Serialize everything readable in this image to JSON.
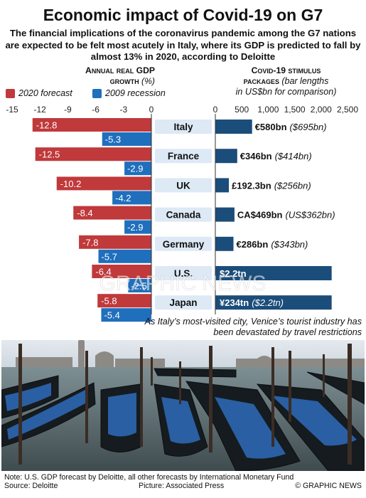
{
  "title": "Economic impact of Covid-19 on G7",
  "subtitle": "The financial implications of the coronavirus pandemic among the G7 nations are expected to be felt most acutely in Italy, where its GDP is predicted to fall by almost 13% in 2020, according to Deloitte",
  "left_header": {
    "line1": "Annual real GDP",
    "line2": "growth",
    "unit": "(%)"
  },
  "right_header": {
    "line1": "Covid-19 stimulus",
    "line2": "packages",
    "note1": "(bar lengths",
    "note2": "in US$bn for comparison)"
  },
  "legend": [
    {
      "label": "2020 forecast",
      "color": "#c0393b"
    },
    {
      "label": "2009 recession",
      "color": "#1f6fbd"
    }
  ],
  "caption": "As Italy’s most-visited city, Venice’s tourist industry has been devastated by travel restrictions",
  "footer": {
    "note": "Note: U.S. GDP forecast by Deloitte, all other forecasts by International Monetary Fund",
    "source": "Source: Deloitte",
    "picture": "Picture: Associated Press",
    "copyright": "© GRAPHIC NEWS"
  },
  "watermark": "GRAPHIC NEWS",
  "chart_data": [
    {
      "type": "bar",
      "title": "Annual real GDP growth (%)",
      "categories": [
        "Italy",
        "France",
        "UK",
        "Canada",
        "Germany",
        "U.S.",
        "Japan"
      ],
      "series": [
        {
          "name": "2020 forecast",
          "color": "#c0393b",
          "values": [
            -12.8,
            -12.5,
            -10.2,
            -8.4,
            -7.8,
            -6.4,
            -5.8
          ],
          "labels": [
            "-12.8",
            "-12.5",
            "-10.2",
            "-8.4",
            "-7.8",
            "-6.4",
            "-5.8"
          ]
        },
        {
          "name": "2009 recession",
          "color": "#1f6fbd",
          "values": [
            -5.3,
            -2.9,
            -4.2,
            -2.9,
            -5.7,
            -2.5,
            -5.4
          ],
          "labels": [
            "-5.3",
            "-2.9",
            "-4.2",
            "-2.9",
            "-5.7",
            "-2.5",
            "-5.4"
          ]
        }
      ],
      "xlim": [
        -15,
        0
      ],
      "ticks": [
        -15,
        -12,
        -9,
        -6,
        -3,
        0
      ],
      "tick_labels": [
        "-15",
        "-12",
        "-9",
        "-6",
        "-3",
        "0"
      ]
    },
    {
      "type": "bar",
      "title": "Covid-19 stimulus packages",
      "categories": [
        "Italy",
        "France",
        "UK",
        "Canada",
        "Germany",
        "U.S.",
        "Japan"
      ],
      "values_usd_bn": [
        695,
        414,
        256,
        362,
        343,
        2200,
        2200
      ],
      "labels": [
        "€580bn",
        "€346bn",
        "£192.3bn",
        "CA$469bn",
        "€286bn",
        "$2.2tn",
        "¥234tn"
      ],
      "usd_labels": [
        "($695bn)",
        "($414bn)",
        "($256bn)",
        "(US$362bn)",
        "($343bn)",
        "",
        "($2.2tn)"
      ],
      "color": "#1b4d7a",
      "xlim": [
        0,
        2500
      ],
      "ticks": [
        0,
        500,
        1000,
        1500,
        2000,
        2500
      ],
      "tick_labels": [
        "0",
        "500",
        "1,000",
        "1,500",
        "2,000",
        "2,500"
      ]
    }
  ]
}
